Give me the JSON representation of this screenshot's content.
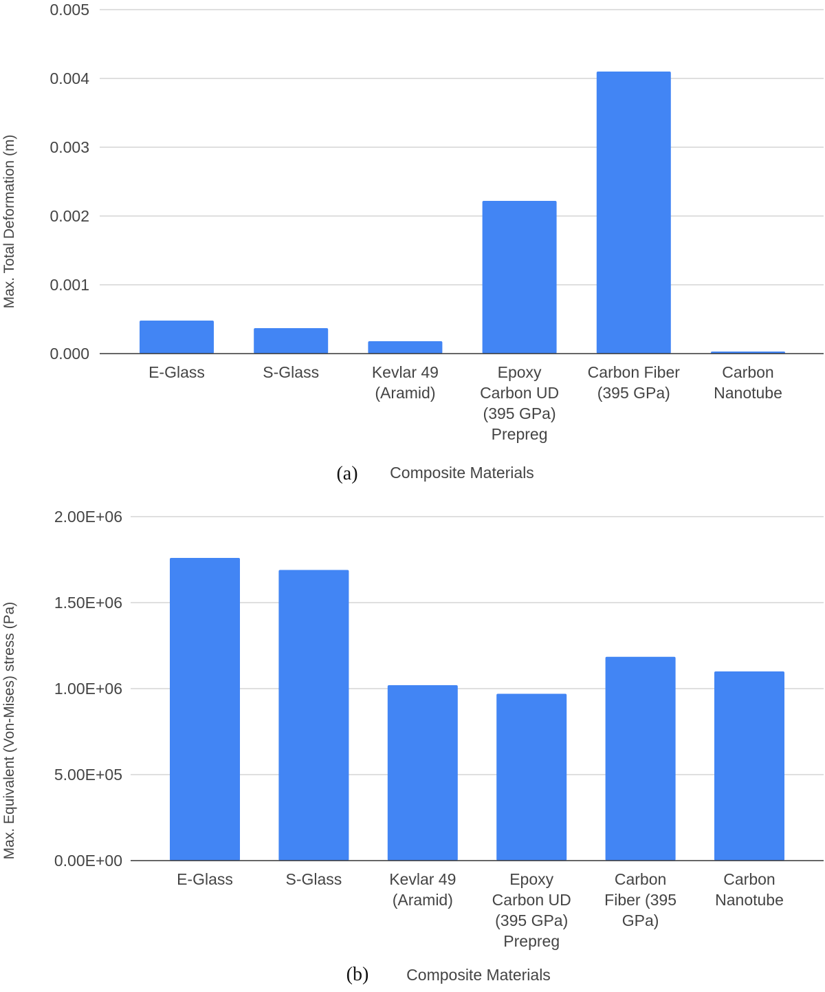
{
  "colors": {
    "bar": "#4285f4",
    "grid": "#cccccc",
    "axis": "#333333",
    "text": "#444444"
  },
  "chart_data": [
    {
      "type": "bar",
      "panel_label": "(a)",
      "xlabel": "Composite Materials",
      "ylabel": "Max. Total Deformation (m)",
      "categories": [
        [
          "E-Glass"
        ],
        [
          "S-Glass"
        ],
        [
          "Kevlar 49",
          "(Aramid)"
        ],
        [
          "Epoxy",
          "Carbon UD",
          "(395 GPa)",
          "Prepreg"
        ],
        [
          "Carbon Fiber",
          "(395 GPa)"
        ],
        [
          "Carbon",
          "Nanotube"
        ]
      ],
      "values": [
        0.00048,
        0.00037,
        0.00018,
        0.00222,
        0.0041,
        3e-05
      ],
      "ylim": [
        0,
        0.005
      ],
      "yticks": [
        0,
        0.001,
        0.002,
        0.003,
        0.004,
        0.005
      ],
      "ytick_labels": [
        "0.000",
        "0.001",
        "0.002",
        "0.003",
        "0.004",
        "0.005"
      ],
      "grid": true
    },
    {
      "type": "bar",
      "panel_label": "(b)",
      "xlabel": "Composite Materials",
      "ylabel": "Max. Equivalent (Von-Mises) stress (Pa)",
      "categories": [
        [
          "E-Glass"
        ],
        [
          "S-Glass"
        ],
        [
          "Kevlar 49",
          "(Aramid)"
        ],
        [
          "Epoxy",
          "Carbon UD",
          "(395 GPa)",
          "Prepreg"
        ],
        [
          "Carbon",
          "Fiber (395",
          "GPa)"
        ],
        [
          "Carbon",
          "Nanotube"
        ]
      ],
      "values": [
        1760000,
        1690000,
        1020000,
        970000,
        1185000,
        1100000
      ],
      "ylim": [
        0,
        2000000
      ],
      "yticks": [
        0,
        500000,
        1000000,
        1500000,
        2000000
      ],
      "ytick_labels": [
        "0.00E+00",
        "5.00E+05",
        "1.00E+06",
        "1.50E+06",
        "2.00E+06"
      ],
      "grid": true
    }
  ]
}
